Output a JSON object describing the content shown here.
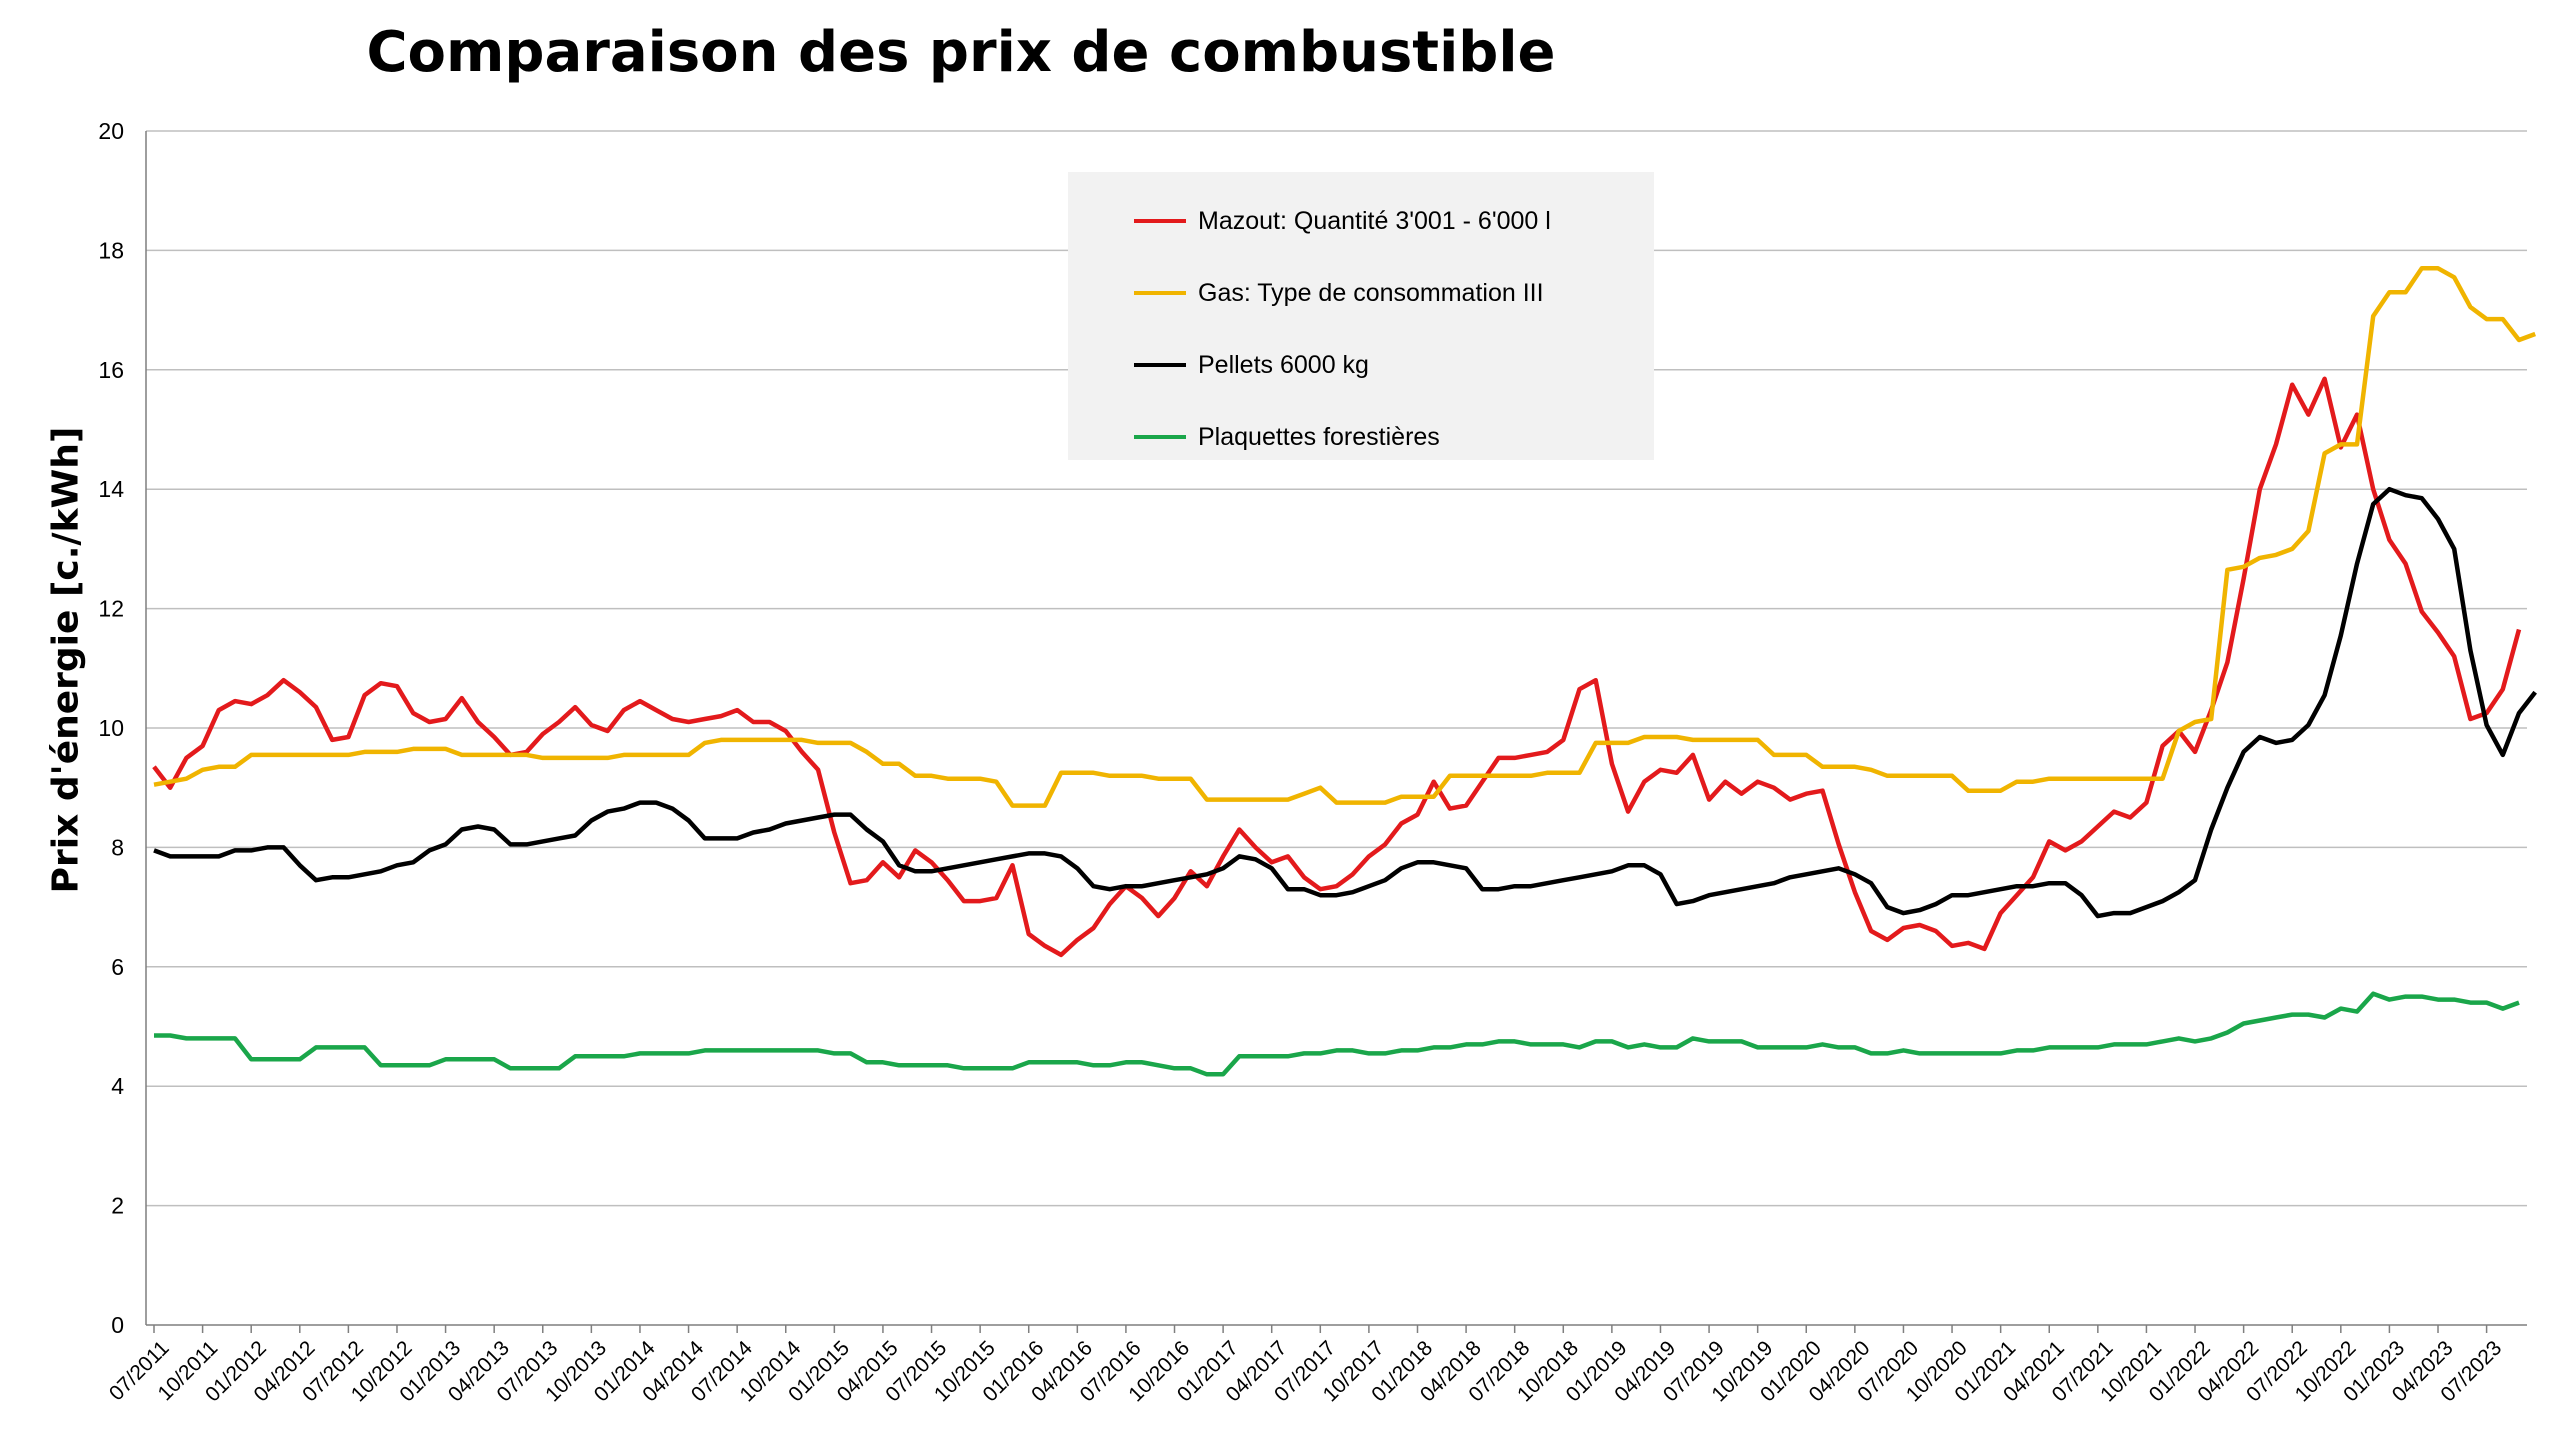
{
  "chart_data": {
    "type": "line",
    "title": "Comparaison des prix de combustible",
    "xlabel": "",
    "ylabel": "Prix d'énergie [c./kWh]",
    "ylim": [
      0,
      20
    ],
    "yticks": [
      0,
      2,
      4,
      6,
      8,
      10,
      12,
      14,
      16,
      18,
      20
    ],
    "grid": true,
    "legend_position": "top-center",
    "x_tick_labels": [
      "07/2011",
      "10/2011",
      "01/2012",
      "04/2012",
      "07/2012",
      "10/2012",
      "01/2013",
      "04/2013",
      "07/2013",
      "10/2013",
      "01/2014",
      "04/2014",
      "07/2014",
      "10/2014",
      "01/2015",
      "04/2015",
      "07/2015",
      "10/2015",
      "01/2016",
      "04/2016",
      "07/2016",
      "10/2016",
      "01/2017",
      "04/2017",
      "07/2017",
      "10/2017",
      "01/2018",
      "04/2018",
      "07/2018",
      "10/2018",
      "01/2019",
      "04/2019",
      "07/2019",
      "10/2019",
      "01/2020",
      "04/2020",
      "07/2020",
      "10/2020",
      "01/2021",
      "04/2021",
      "07/2021",
      "10/2021",
      "01/2022",
      "04/2022",
      "07/2022",
      "10/2022",
      "01/2023",
      "04/2023",
      "07/2023"
    ],
    "x_start": "07/2011",
    "x_end": "09/2023",
    "series": [
      {
        "name": "Mazout: Quantité 3'001 - 6'000 l",
        "color": "#e31a1c",
        "values": [
          9.35,
          9.0,
          9.5,
          9.7,
          10.3,
          10.45,
          10.4,
          10.55,
          10.8,
          10.6,
          10.35,
          9.8,
          9.85,
          10.55,
          10.75,
          10.7,
          10.25,
          10.1,
          10.15,
          10.5,
          10.1,
          9.85,
          9.55,
          9.6,
          9.9,
          10.1,
          10.35,
          10.05,
          9.95,
          10.3,
          10.45,
          10.3,
          10.15,
          10.1,
          10.15,
          10.2,
          10.3,
          10.1,
          10.1,
          9.95,
          9.6,
          9.3,
          8.25,
          7.4,
          7.45,
          7.75,
          7.5,
          7.95,
          7.75,
          7.45,
          7.1,
          7.1,
          7.15,
          7.7,
          6.55,
          6.35,
          6.2,
          6.45,
          6.65,
          7.05,
          7.35,
          7.15,
          6.85,
          7.15,
          7.6,
          7.35,
          7.85,
          8.3,
          8.0,
          7.75,
          7.85,
          7.5,
          7.3,
          7.35,
          7.55,
          7.85,
          8.05,
          8.4,
          8.55,
          9.1,
          8.65,
          8.7,
          9.1,
          9.5,
          9.5,
          9.55,
          9.6,
          9.8,
          10.65,
          10.8,
          9.4,
          8.6,
          9.1,
          9.3,
          9.25,
          9.55,
          8.8,
          9.1,
          8.9,
          9.1,
          9.0,
          8.8,
          8.9,
          8.95,
          8.05,
          7.25,
          6.6,
          6.45,
          6.65,
          6.7,
          6.6,
          6.35,
          6.4,
          6.3,
          6.9,
          7.2,
          7.5,
          8.1,
          7.95,
          8.1,
          8.35,
          8.6,
          8.5,
          8.75,
          9.7,
          9.95,
          9.6,
          10.3,
          11.1,
          12.5,
          14.0,
          14.75,
          15.75,
          15.25,
          15.85,
          14.7,
          15.25,
          14.0,
          13.15,
          12.75,
          11.95,
          11.6,
          11.2,
          10.15,
          10.25,
          10.65,
          11.65
        ]
      },
      {
        "name": "Gas: Type de consommation III",
        "color": "#f0b400",
        "values": [
          9.05,
          9.1,
          9.15,
          9.3,
          9.35,
          9.35,
          9.55,
          9.55,
          9.55,
          9.55,
          9.55,
          9.55,
          9.55,
          9.6,
          9.6,
          9.6,
          9.65,
          9.65,
          9.65,
          9.55,
          9.55,
          9.55,
          9.55,
          9.55,
          9.5,
          9.5,
          9.5,
          9.5,
          9.5,
          9.55,
          9.55,
          9.55,
          9.55,
          9.55,
          9.75,
          9.8,
          9.8,
          9.8,
          9.8,
          9.8,
          9.8,
          9.75,
          9.75,
          9.75,
          9.6,
          9.4,
          9.4,
          9.2,
          9.2,
          9.15,
          9.15,
          9.15,
          9.1,
          8.7,
          8.7,
          8.7,
          9.25,
          9.25,
          9.25,
          9.2,
          9.2,
          9.2,
          9.15,
          9.15,
          9.15,
          8.8,
          8.8,
          8.8,
          8.8,
          8.8,
          8.8,
          8.9,
          9.0,
          8.75,
          8.75,
          8.75,
          8.75,
          8.85,
          8.85,
          8.85,
          9.2,
          9.2,
          9.2,
          9.2,
          9.2,
          9.2,
          9.25,
          9.25,
          9.25,
          9.75,
          9.75,
          9.75,
          9.85,
          9.85,
          9.85,
          9.8,
          9.8,
          9.8,
          9.8,
          9.8,
          9.55,
          9.55,
          9.55,
          9.35,
          9.35,
          9.35,
          9.3,
          9.2,
          9.2,
          9.2,
          9.2,
          9.2,
          8.95,
          8.95,
          8.95,
          9.1,
          9.1,
          9.15,
          9.15,
          9.15,
          9.15,
          9.15,
          9.15,
          9.15,
          9.15,
          9.95,
          10.1,
          10.15,
          12.65,
          12.7,
          12.85,
          12.9,
          13.0,
          13.3,
          14.6,
          14.75,
          14.75,
          16.9,
          17.3,
          17.3,
          17.7,
          17.7,
          17.55,
          17.05,
          16.85,
          16.85,
          16.5,
          16.6
        ]
      },
      {
        "name": "Pellets 6000 kg",
        "color": "#000000",
        "values": [
          7.95,
          7.85,
          7.85,
          7.85,
          7.85,
          7.95,
          7.95,
          8.0,
          8.0,
          7.7,
          7.45,
          7.5,
          7.5,
          7.55,
          7.6,
          7.7,
          7.75,
          7.95,
          8.05,
          8.3,
          8.35,
          8.3,
          8.05,
          8.05,
          8.1,
          8.15,
          8.2,
          8.45,
          8.6,
          8.65,
          8.75,
          8.75,
          8.65,
          8.45,
          8.15,
          8.15,
          8.15,
          8.25,
          8.3,
          8.4,
          8.45,
          8.5,
          8.55,
          8.55,
          8.3,
          8.1,
          7.7,
          7.6,
          7.6,
          7.65,
          7.7,
          7.75,
          7.8,
          7.85,
          7.9,
          7.9,
          7.85,
          7.65,
          7.35,
          7.3,
          7.35,
          7.35,
          7.4,
          7.45,
          7.5,
          7.55,
          7.65,
          7.85,
          7.8,
          7.65,
          7.3,
          7.3,
          7.2,
          7.2,
          7.25,
          7.35,
          7.45,
          7.65,
          7.75,
          7.75,
          7.7,
          7.65,
          7.3,
          7.3,
          7.35,
          7.35,
          7.4,
          7.45,
          7.5,
          7.55,
          7.6,
          7.7,
          7.7,
          7.55,
          7.05,
          7.1,
          7.2,
          7.25,
          7.3,
          7.35,
          7.4,
          7.5,
          7.55,
          7.6,
          7.65,
          7.55,
          7.4,
          7.0,
          6.9,
          6.95,
          7.05,
          7.2,
          7.2,
          7.25,
          7.3,
          7.35,
          7.35,
          7.4,
          7.4,
          7.2,
          6.85,
          6.9,
          6.9,
          7.0,
          7.1,
          7.25,
          7.45,
          8.3,
          9.0,
          9.6,
          9.85,
          9.75,
          9.8,
          10.05,
          10.55,
          11.55,
          12.75,
          13.75,
          14.0,
          13.9,
          13.85,
          13.5,
          13.0,
          11.3,
          10.05,
          9.55,
          10.25,
          10.6
        ]
      },
      {
        "name": "Plaquettes forestières",
        "color": "#1aa64a",
        "values": [
          4.85,
          4.85,
          4.8,
          4.8,
          4.8,
          4.8,
          4.45,
          4.45,
          4.45,
          4.45,
          4.65,
          4.65,
          4.65,
          4.65,
          4.35,
          4.35,
          4.35,
          4.35,
          4.45,
          4.45,
          4.45,
          4.45,
          4.3,
          4.3,
          4.3,
          4.3,
          4.5,
          4.5,
          4.5,
          4.5,
          4.55,
          4.55,
          4.55,
          4.55,
          4.6,
          4.6,
          4.6,
          4.6,
          4.6,
          4.6,
          4.6,
          4.6,
          4.55,
          4.55,
          4.4,
          4.4,
          4.35,
          4.35,
          4.35,
          4.35,
          4.3,
          4.3,
          4.3,
          4.3,
          4.4,
          4.4,
          4.4,
          4.4,
          4.35,
          4.35,
          4.4,
          4.4,
          4.35,
          4.3,
          4.3,
          4.2,
          4.2,
          4.5,
          4.5,
          4.5,
          4.5,
          4.55,
          4.55,
          4.6,
          4.6,
          4.55,
          4.55,
          4.6,
          4.6,
          4.65,
          4.65,
          4.7,
          4.7,
          4.75,
          4.75,
          4.7,
          4.7,
          4.7,
          4.65,
          4.75,
          4.75,
          4.65,
          4.7,
          4.65,
          4.65,
          4.8,
          4.75,
          4.75,
          4.75,
          4.65,
          4.65,
          4.65,
          4.65,
          4.7,
          4.65,
          4.65,
          4.55,
          4.55,
          4.6,
          4.55,
          4.55,
          4.55,
          4.55,
          4.55,
          4.55,
          4.6,
          4.6,
          4.65,
          4.65,
          4.65,
          4.65,
          4.7,
          4.7,
          4.7,
          4.75,
          4.8,
          4.75,
          4.8,
          4.9,
          5.05,
          5.1,
          5.15,
          5.2,
          5.2,
          5.15,
          5.3,
          5.25,
          5.55,
          5.45,
          5.5,
          5.5,
          5.45,
          5.45,
          5.4,
          5.4,
          5.3,
          5.4
        ]
      }
    ]
  }
}
